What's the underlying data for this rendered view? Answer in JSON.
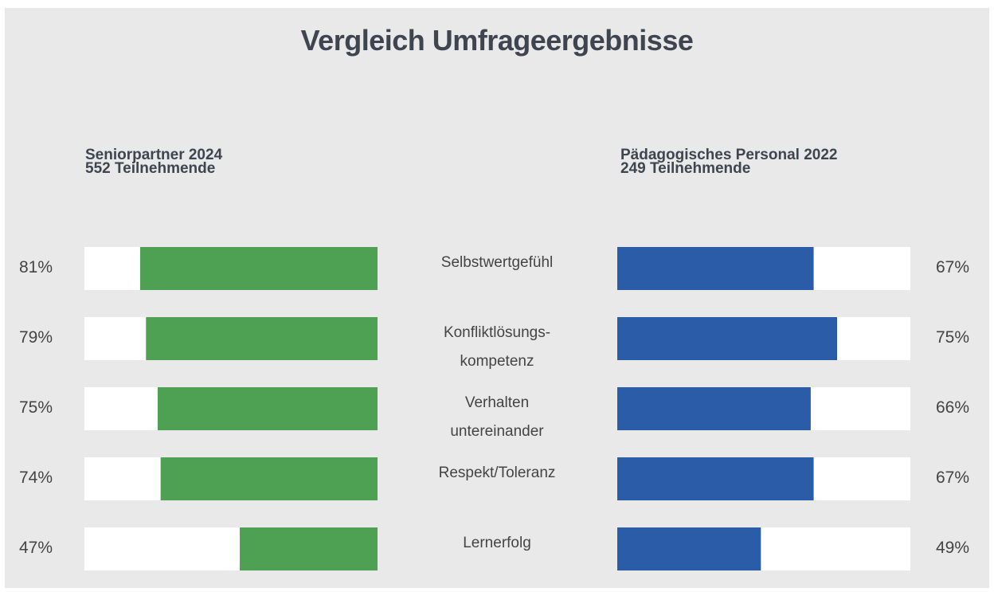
{
  "chart_data": {
    "type": "butterfly",
    "title": "Vergleich Umfrageergebnisse",
    "categories": [
      "Selbstwertgefühl",
      "Konfliktlösungs-kompetenz",
      "Verhalten untereinander",
      "Respekt/Toleranz",
      "Lernerfolg"
    ],
    "xlim": [
      0,
      100
    ],
    "series": [
      {
        "name": "Seniorpartner 2024",
        "subtitle": "552 Teilnehmende",
        "color": "#4ea153",
        "side": "left",
        "values": [
          81,
          79,
          75,
          74,
          47
        ],
        "value_labels": [
          "81%",
          "79%",
          "75%",
          "74%",
          "47%"
        ]
      },
      {
        "name": "Pädagogisches Personal 2022",
        "subtitle": "249 Teilnehmende",
        "color": "#2b5ca8",
        "side": "right",
        "values": [
          67,
          75,
          66,
          67,
          49
        ],
        "value_labels": [
          "67%",
          "75%",
          "66%",
          "67%",
          "49%"
        ]
      }
    ]
  }
}
